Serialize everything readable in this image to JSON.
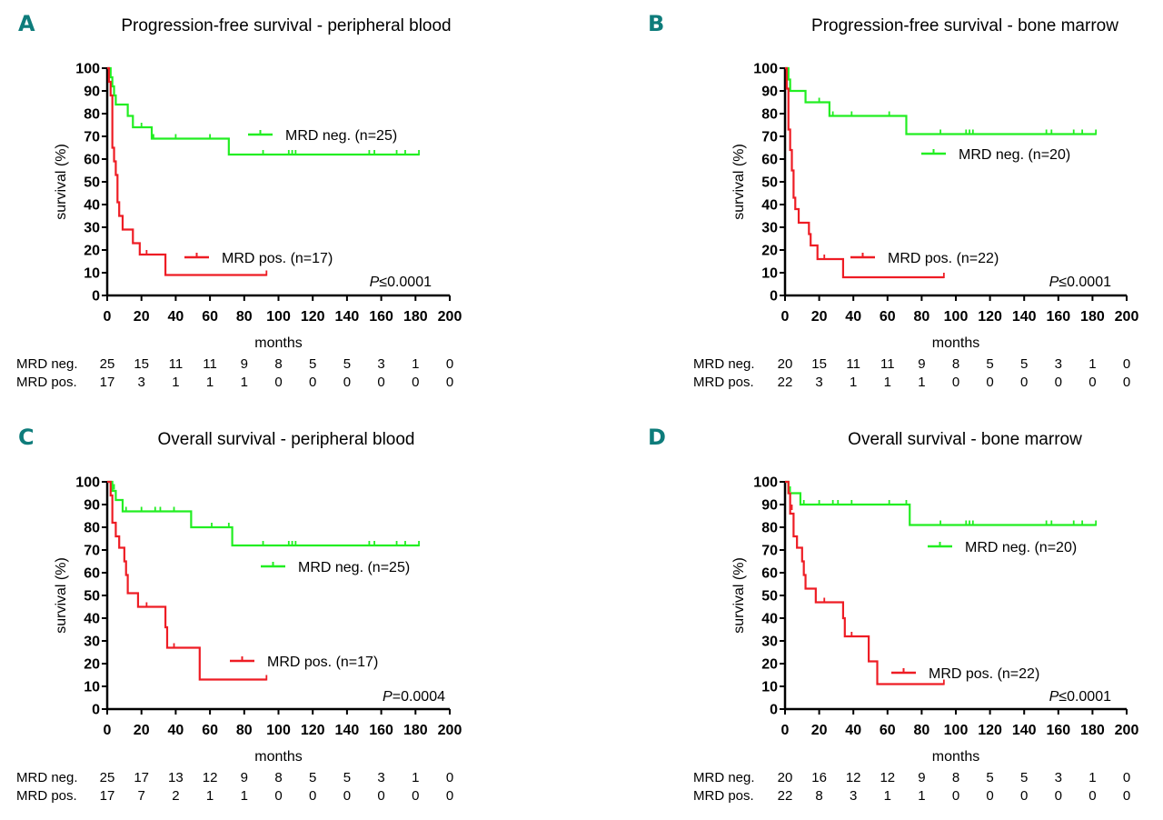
{
  "chart_data": [
    {
      "panel": "A",
      "type": "line",
      "title": "Progression-free survival - peripheral blood",
      "xlabel": "months",
      "ylabel": "survival (%)",
      "xlim": [
        0,
        200
      ],
      "ylim": [
        0,
        100
      ],
      "xticks": [
        "0",
        "20",
        "40",
        "60",
        "80",
        "100",
        "120",
        "140",
        "160",
        "180",
        "200"
      ],
      "yticks": [
        "0",
        "10",
        "20",
        "30",
        "40",
        "50",
        "60",
        "70",
        "80",
        "90",
        "100"
      ],
      "p_value": {
        "prefix": "P",
        "text": "≤0.0001"
      },
      "series": [
        {
          "name": "MRD neg. (n=25)",
          "color": "#22ee22",
          "steps": [
            [
              0,
              100
            ],
            [
              2,
              96
            ],
            [
              3,
              92
            ],
            [
              4,
              88
            ],
            [
              5,
              84
            ],
            [
              12,
              79
            ],
            [
              15,
              74
            ],
            [
              26,
              69
            ],
            [
              71,
              62
            ],
            [
              182,
              62
            ]
          ],
          "censored": [
            [
              20,
              74
            ],
            [
              27,
              69
            ],
            [
              40,
              69
            ],
            [
              60,
              69
            ],
            [
              91,
              62
            ],
            [
              106,
              62
            ],
            [
              108,
              62
            ],
            [
              110,
              62
            ],
            [
              153,
              62
            ],
            [
              156,
              62
            ],
            [
              169,
              62
            ],
            [
              174,
              62
            ],
            [
              182,
              62
            ]
          ]
        },
        {
          "name": "MRD pos. (n=17)",
          "color": "#ee1c24",
          "steps": [
            [
              0,
              100
            ],
            [
              1,
              94
            ],
            [
              2,
              88
            ],
            [
              3,
              65
            ],
            [
              4,
              59
            ],
            [
              5,
              53
            ],
            [
              6,
              41
            ],
            [
              7,
              35
            ],
            [
              9,
              29
            ],
            [
              15,
              23
            ],
            [
              19,
              18
            ],
            [
              34,
              9
            ],
            [
              93,
              9
            ]
          ],
          "censored": [
            [
              23,
              18
            ],
            [
              93,
              9
            ]
          ]
        }
      ],
      "legend": "right",
      "risk_table": {
        "times": [
          "0",
          "20",
          "40",
          "60",
          "80",
          "100",
          "120",
          "140",
          "160",
          "180",
          "200"
        ],
        "rows": [
          {
            "label": "MRD neg.",
            "values": [
              "25",
              "15",
              "11",
              "11",
              "9",
              "8",
              "5",
              "5",
              "3",
              "1",
              "0"
            ]
          },
          {
            "label": "MRD pos.",
            "values": [
              "17",
              "3",
              "1",
              "1",
              "1",
              "0",
              "0",
              "0",
              "0",
              "0",
              "0"
            ]
          }
        ]
      }
    },
    {
      "panel": "B",
      "type": "line",
      "title": "Progression-free survival - bone marrow",
      "xlabel": "months",
      "ylabel": "survival (%)",
      "xlim": [
        0,
        200
      ],
      "ylim": [
        0,
        100
      ],
      "xticks": [
        "0",
        "20",
        "40",
        "60",
        "80",
        "100",
        "120",
        "140",
        "160",
        "180",
        "200"
      ],
      "yticks": [
        "0",
        "10",
        "20",
        "30",
        "40",
        "50",
        "60",
        "70",
        "80",
        "90",
        "100"
      ],
      "p_value": {
        "prefix": "P",
        "text": "≤0.0001"
      },
      "series": [
        {
          "name": "MRD neg. (n=20)",
          "color": "#22ee22",
          "steps": [
            [
              0,
              100
            ],
            [
              2,
              95
            ],
            [
              3,
              90
            ],
            [
              12,
              85
            ],
            [
              26,
              79
            ],
            [
              71,
              71
            ],
            [
              182,
              71
            ]
          ],
          "censored": [
            [
              3,
              91
            ],
            [
              20,
              85
            ],
            [
              28,
              79
            ],
            [
              39,
              79
            ],
            [
              61,
              79
            ],
            [
              91,
              71
            ],
            [
              106,
              71
            ],
            [
              108,
              71
            ],
            [
              110,
              71
            ],
            [
              153,
              71
            ],
            [
              156,
              71
            ],
            [
              169,
              71
            ],
            [
              174,
              71
            ],
            [
              182,
              71
            ]
          ]
        },
        {
          "name": "MRD pos. (n=22)",
          "color": "#ee1c24",
          "steps": [
            [
              0,
              100
            ],
            [
              1,
              91
            ],
            [
              2,
              73
            ],
            [
              3,
              64
            ],
            [
              4,
              55
            ],
            [
              5,
              43
            ],
            [
              6,
              38
            ],
            [
              8,
              32
            ],
            [
              14,
              27
            ],
            [
              15,
              22
            ],
            [
              19,
              16
            ],
            [
              34,
              8
            ],
            [
              93,
              8
            ]
          ],
          "censored": [
            [
              23,
              16
            ],
            [
              93,
              8
            ]
          ]
        }
      ],
      "legend": "right",
      "risk_table": {
        "times": [
          "0",
          "20",
          "40",
          "60",
          "80",
          "100",
          "120",
          "140",
          "160",
          "180",
          "200"
        ],
        "rows": [
          {
            "label": "MRD neg.",
            "values": [
              "20",
              "15",
              "11",
              "11",
              "9",
              "8",
              "5",
              "5",
              "3",
              "1",
              "0"
            ]
          },
          {
            "label": "MRD pos.",
            "values": [
              "22",
              "3",
              "1",
              "1",
              "1",
              "0",
              "0",
              "0",
              "0",
              "0",
              "0"
            ]
          }
        ]
      }
    },
    {
      "panel": "C",
      "type": "line",
      "title": "Overall survival - peripheral blood",
      "xlabel": "months",
      "ylabel": "survival (%)",
      "xlim": [
        0,
        200
      ],
      "ylim": [
        0,
        100
      ],
      "xticks": [
        "0",
        "20",
        "40",
        "60",
        "80",
        "100",
        "120",
        "140",
        "160",
        "180",
        "200"
      ],
      "yticks": [
        "0",
        "10",
        "20",
        "30",
        "40",
        "50",
        "60",
        "70",
        "80",
        "90",
        "100"
      ],
      "p_value": {
        "prefix": "P",
        "text": "=0.0004"
      },
      "series": [
        {
          "name": "MRD neg. (n=25)",
          "color": "#22ee22",
          "steps": [
            [
              0,
              100
            ],
            [
              3,
              96
            ],
            [
              5,
              92
            ],
            [
              9,
              87
            ],
            [
              49,
              80
            ],
            [
              73,
              72
            ],
            [
              182,
              72
            ]
          ],
          "censored": [
            [
              4,
              97
            ],
            [
              11,
              87
            ],
            [
              20,
              87
            ],
            [
              28,
              87
            ],
            [
              31,
              87
            ],
            [
              39,
              87
            ],
            [
              61,
              80
            ],
            [
              71,
              80
            ],
            [
              91,
              72
            ],
            [
              106,
              72
            ],
            [
              108,
              72
            ],
            [
              110,
              72
            ],
            [
              153,
              72
            ],
            [
              156,
              72
            ],
            [
              169,
              72
            ],
            [
              174,
              72
            ],
            [
              182,
              72
            ]
          ]
        },
        {
          "name": "MRD pos. (n=17)",
          "color": "#ee1c24",
          "steps": [
            [
              0,
              100
            ],
            [
              2,
              94
            ],
            [
              3,
              82
            ],
            [
              5,
              76
            ],
            [
              7,
              71
            ],
            [
              10,
              65
            ],
            [
              11,
              59
            ],
            [
              12,
              51
            ],
            [
              18,
              45
            ],
            [
              34,
              36
            ],
            [
              35,
              27
            ],
            [
              54,
              13
            ],
            [
              93,
              13
            ]
          ],
          "censored": [
            [
              23,
              45
            ],
            [
              39,
              27
            ],
            [
              93,
              13
            ]
          ]
        }
      ],
      "legend": "right",
      "risk_table": {
        "times": [
          "0",
          "20",
          "40",
          "60",
          "80",
          "100",
          "120",
          "140",
          "160",
          "180",
          "200"
        ],
        "rows": [
          {
            "label": "MRD neg.",
            "values": [
              "25",
              "17",
              "13",
              "12",
              "9",
              "8",
              "5",
              "5",
              "3",
              "1",
              "0"
            ]
          },
          {
            "label": "MRD pos.",
            "values": [
              "17",
              "7",
              "2",
              "1",
              "1",
              "0",
              "0",
              "0",
              "0",
              "0",
              "0"
            ]
          }
        ]
      }
    },
    {
      "panel": "D",
      "type": "line",
      "title": "Overall survival - bone marrow",
      "xlabel": "months",
      "ylabel": "survival (%)",
      "xlim": [
        0,
        200
      ],
      "ylim": [
        0,
        100
      ],
      "xticks": [
        "0",
        "20",
        "40",
        "60",
        "80",
        "100",
        "120",
        "140",
        "160",
        "180",
        "200"
      ],
      "yticks": [
        "0",
        "10",
        "20",
        "30",
        "40",
        "50",
        "60",
        "70",
        "80",
        "90",
        "100"
      ],
      "p_value": {
        "prefix": "P",
        "text": "≤0.0001"
      },
      "series": [
        {
          "name": "MRD neg. (n=20)",
          "color": "#22ee22",
          "steps": [
            [
              0,
              100
            ],
            [
              2,
              95
            ],
            [
              9,
              90
            ],
            [
              73,
              81
            ],
            [
              182,
              81
            ]
          ],
          "censored": [
            [
              3,
              96
            ],
            [
              11,
              90
            ],
            [
              20,
              90
            ],
            [
              28,
              90
            ],
            [
              31,
              90
            ],
            [
              39,
              90
            ],
            [
              61,
              90
            ],
            [
              71,
              90
            ],
            [
              91,
              81
            ],
            [
              106,
              81
            ],
            [
              108,
              81
            ],
            [
              110,
              81
            ],
            [
              153,
              81
            ],
            [
              156,
              81
            ],
            [
              169,
              81
            ],
            [
              174,
              81
            ],
            [
              182,
              81
            ]
          ]
        },
        {
          "name": "MRD pos. (n=22)",
          "color": "#ee1c24",
          "steps": [
            [
              0,
              100
            ],
            [
              2,
              95
            ],
            [
              3,
              86
            ],
            [
              5,
              76
            ],
            [
              7,
              71
            ],
            [
              10,
              65
            ],
            [
              11,
              59
            ],
            [
              12,
              53
            ],
            [
              18,
              47
            ],
            [
              34,
              40
            ],
            [
              35,
              32
            ],
            [
              49,
              21
            ],
            [
              54,
              11
            ],
            [
              93,
              11
            ]
          ],
          "censored": [
            [
              4,
              88
            ],
            [
              23,
              47
            ],
            [
              39,
              32
            ],
            [
              93,
              11
            ]
          ]
        }
      ],
      "legend": "right",
      "risk_table": {
        "times": [
          "0",
          "20",
          "40",
          "60",
          "80",
          "100",
          "120",
          "140",
          "160",
          "180",
          "200"
        ],
        "rows": [
          {
            "label": "MRD neg.",
            "values": [
              "20",
              "16",
              "12",
              "12",
              "9",
              "8",
              "5",
              "5",
              "3",
              "1",
              "0"
            ]
          },
          {
            "label": "MRD pos.",
            "values": [
              "22",
              "8",
              "3",
              "1",
              "1",
              "0",
              "0",
              "0",
              "0",
              "0",
              "0"
            ]
          }
        ]
      }
    }
  ]
}
